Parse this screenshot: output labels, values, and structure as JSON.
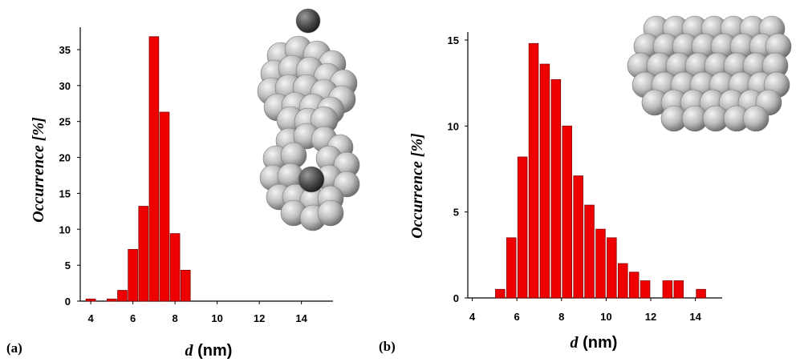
{
  "chart_data": [
    {
      "type": "bar",
      "panel_label": "(a)",
      "xlabel_var": "d",
      "xlabel_unit": " (nm)",
      "ylabel": "Occurrence [%]",
      "x": [
        4,
        5,
        5.5,
        6,
        6.5,
        7,
        7.5,
        8,
        8.5
      ],
      "values": [
        0.3,
        0.3,
        1.5,
        7.2,
        13.2,
        36.8,
        26.3,
        9.4,
        4.3
      ],
      "xlim": [
        3.5,
        15.5
      ],
      "ylim": [
        0,
        37
      ],
      "xticks": [
        4,
        6,
        8,
        10,
        12,
        14
      ],
      "xtick_labels": [
        "4",
        "6",
        "8",
        "10",
        "12",
        "14"
      ],
      "yticks": [
        0,
        5,
        10,
        15,
        20,
        25,
        30,
        35
      ],
      "ytick_labels": [
        "0",
        "5",
        "10",
        "15",
        "20",
        "25",
        "30",
        "35"
      ],
      "bar_color": "#ee0000",
      "bar_edge_color": "#880000",
      "grid": false,
      "insets": [
        "sphere-cluster-with-dark-atom-top",
        "sphere-cluster-with-dark-atom-center"
      ]
    },
    {
      "type": "bar",
      "panel_label": "(b)",
      "xlabel_var": "d",
      "xlabel_unit": " (nm)",
      "ylabel": "Occurrence [%]",
      "x": [
        5.25,
        5.75,
        6.25,
        6.75,
        7.25,
        7.75,
        8.25,
        8.75,
        9.25,
        9.75,
        10.25,
        10.75,
        11.25,
        11.75,
        12.75,
        13.25,
        14.25
      ],
      "values": [
        0.5,
        3.5,
        8.2,
        14.8,
        13.6,
        12.7,
        10.0,
        7.1,
        5.4,
        4.0,
        3.5,
        2.0,
        1.5,
        1.0,
        1.0,
        1.0,
        0.5
      ],
      "xlim": [
        3.8,
        15.2
      ],
      "ylim": [
        0,
        15
      ],
      "xticks": [
        4,
        6,
        8,
        10,
        12,
        14
      ],
      "xtick_labels": [
        "4",
        "6",
        "8",
        "10",
        "12",
        "14"
      ],
      "yticks": [
        0,
        5,
        10,
        15
      ],
      "ytick_labels": [
        "0",
        "5",
        "10",
        "15"
      ],
      "bar_color": "#ee0000",
      "bar_edge_color": "#880000",
      "grid": false,
      "insets": [
        "elongated-sphere-cluster"
      ]
    }
  ]
}
